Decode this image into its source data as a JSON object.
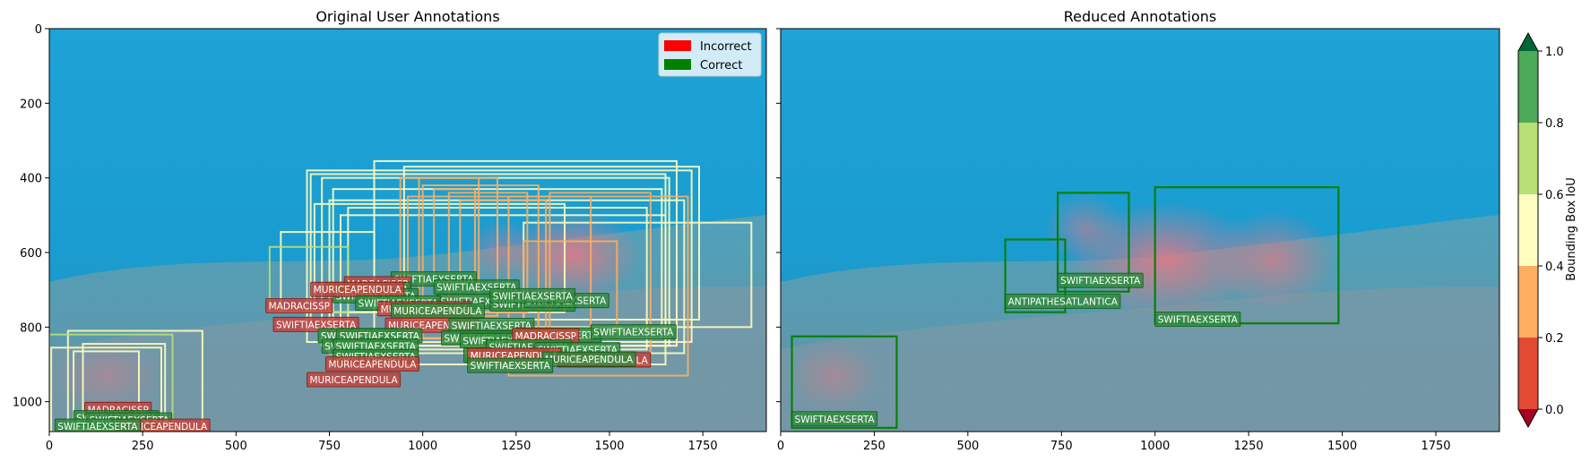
{
  "chart_data": [
    {
      "type": "annotated_image",
      "title": "Original User Annotations",
      "xlim": [
        0,
        1920
      ],
      "ylim": [
        1080,
        0
      ],
      "xticks": [
        0,
        250,
        500,
        750,
        1000,
        1250,
        1500,
        1750
      ],
      "yticks": [
        0,
        200,
        400,
        600,
        800,
        1000
      ],
      "legend": {
        "placement": "top-right",
        "entries": [
          {
            "label": "Incorrect",
            "color": "#ff0000"
          },
          {
            "label": "Correct",
            "color": "#008000"
          }
        ]
      },
      "boxes": [
        {
          "x0": 870,
          "y0": 355,
          "x1": 1680,
          "y1": 850,
          "iou": 0.5
        },
        {
          "x0": 690,
          "y0": 380,
          "x1": 1720,
          "y1": 840,
          "iou": 0.5
        },
        {
          "x0": 700,
          "y0": 390,
          "x1": 1650,
          "y1": 810,
          "iou": 0.5
        },
        {
          "x0": 730,
          "y0": 400,
          "x1": 1660,
          "y1": 850,
          "iou": 0.5
        },
        {
          "x0": 950,
          "y0": 370,
          "x1": 1740,
          "y1": 780,
          "iou": 0.5
        },
        {
          "x0": 750,
          "y0": 460,
          "x1": 1700,
          "y1": 870,
          "iou": 0.5
        },
        {
          "x0": 760,
          "y0": 430,
          "x1": 1640,
          "y1": 830,
          "iou": 0.5
        },
        {
          "x0": 780,
          "y0": 500,
          "x1": 1650,
          "y1": 900,
          "iou": 0.5
        },
        {
          "x0": 800,
          "y0": 480,
          "x1": 1600,
          "y1": 860,
          "iou": 0.5
        },
        {
          "x0": 710,
          "y0": 470,
          "x1": 1380,
          "y1": 760,
          "iou": 0.5
        },
        {
          "x0": 1270,
          "y0": 520,
          "x1": 1880,
          "y1": 800,
          "iou": 0.5
        },
        {
          "x0": 960,
          "y0": 450,
          "x1": 1450,
          "y1": 810,
          "iou": 0.4
        },
        {
          "x0": 1230,
          "y0": 450,
          "x1": 1710,
          "y1": 930,
          "iou": 0.3
        },
        {
          "x0": 1000,
          "y0": 420,
          "x1": 1310,
          "y1": 830,
          "iou": 0.3
        },
        {
          "x0": 940,
          "y0": 400,
          "x1": 1200,
          "y1": 770,
          "iou": 0.3
        },
        {
          "x0": 990,
          "y0": 400,
          "x1": 1150,
          "y1": 720,
          "iou": 0.3
        },
        {
          "x0": 1030,
          "y0": 430,
          "x1": 1140,
          "y1": 680,
          "iou": 0.3
        },
        {
          "x0": 1070,
          "y0": 440,
          "x1": 1280,
          "y1": 760,
          "iou": 0.3
        },
        {
          "x0": 1100,
          "y0": 460,
          "x1": 1330,
          "y1": 820,
          "iou": 0.3
        },
        {
          "x0": 1270,
          "y0": 570,
          "x1": 1520,
          "y1": 830,
          "iou": 0.3
        },
        {
          "x0": 1340,
          "y0": 440,
          "x1": 1610,
          "y1": 870,
          "iou": 0.3
        },
        {
          "x0": 620,
          "y0": 545,
          "x1": 870,
          "y1": 760,
          "iou": 0.6
        },
        {
          "x0": 590,
          "y0": 585,
          "x1": 800,
          "y1": 760,
          "iou": 0.7
        },
        {
          "x0": 50,
          "y0": 810,
          "x1": 410,
          "y1": 1075,
          "iou": 0.5
        },
        {
          "x0": 5,
          "y0": 855,
          "x1": 300,
          "y1": 1080,
          "iou": 0.5
        },
        {
          "x0": 90,
          "y0": 845,
          "x1": 310,
          "y1": 1075,
          "iou": 0.6
        },
        {
          "x0": 65,
          "y0": 865,
          "x1": 240,
          "y1": 1075,
          "iou": 0.6
        },
        {
          "x0": 0,
          "y0": 820,
          "x1": 330,
          "y1": 1080,
          "iou": 0.7
        }
      ],
      "labels": [
        {
          "text": "SWIFTIAEXSERTA",
          "x": 915,
          "y": 690,
          "correct": true
        },
        {
          "text": "SWIFTIAEXSERTA",
          "x": 1030,
          "y": 712,
          "correct": true
        },
        {
          "text": "MADRACISSP",
          "x": 790,
          "y": 703,
          "correct": false
        },
        {
          "text": "SWIFTIAEXSERTA",
          "x": 740,
          "y": 718,
          "correct": true
        },
        {
          "text": "SWIFTIAEXSERTA",
          "x": 760,
          "y": 735,
          "correct": true
        },
        {
          "text": "MURICEAPENDULA",
          "x": 700,
          "y": 718,
          "correct": false
        },
        {
          "text": "SWIFTIAEXSERTA",
          "x": 1040,
          "y": 750,
          "correct": true
        },
        {
          "text": "SWIFTIAEXSERTA",
          "x": 1180,
          "y": 757,
          "correct": true
        },
        {
          "text": "MADRACISSP",
          "x": 580,
          "y": 762,
          "correct": false
        },
        {
          "text": "SWIFTIAEXSERTA",
          "x": 820,
          "y": 755,
          "correct": true
        },
        {
          "text": "MURICEAPENDULA",
          "x": 880,
          "y": 770,
          "correct": false
        },
        {
          "text": "MURICEAPENDULA",
          "x": 915,
          "y": 775,
          "correct": true
        },
        {
          "text": "SWIFTIAEXSERTA",
          "x": 1270,
          "y": 748,
          "correct": true
        },
        {
          "text": "SWIFTIAEXSERTA",
          "x": 1180,
          "y": 735,
          "correct": true
        },
        {
          "text": "SWIFTIAEXSERTA",
          "x": 600,
          "y": 812,
          "correct": false
        },
        {
          "text": "MURICEAPENDULA",
          "x": 900,
          "y": 814,
          "correct": false
        },
        {
          "text": "SWIFTIAEXSERTA",
          "x": 1070,
          "y": 815,
          "correct": true
        },
        {
          "text": "SWIFTIAEXSERTA",
          "x": 720,
          "y": 842,
          "correct": true
        },
        {
          "text": "SWIFTIAEXSERTA",
          "x": 770,
          "y": 842,
          "correct": true
        },
        {
          "text": "SWIFTIAEXSERTA",
          "x": 1050,
          "y": 848,
          "correct": true
        },
        {
          "text": "SWIFTIAEXSERTA",
          "x": 1100,
          "y": 855,
          "correct": true
        },
        {
          "text": "SWIFTIAEXSERTA",
          "x": 1250,
          "y": 840,
          "correct": true
        },
        {
          "text": "SWIFTIAEXSERTA",
          "x": 1450,
          "y": 832,
          "correct": true
        },
        {
          "text": "MADRACISSP",
          "x": 1240,
          "y": 842,
          "correct": false
        },
        {
          "text": "SWIFTIAEXSERTA",
          "x": 730,
          "y": 870,
          "correct": true
        },
        {
          "text": "SWIFTIAEXSERTA",
          "x": 760,
          "y": 870,
          "correct": true
        },
        {
          "text": "SWIFTIAEXSERTA",
          "x": 1170,
          "y": 872,
          "correct": true
        },
        {
          "text": "SWIFTIAEXSERTA",
          "x": 1300,
          "y": 880,
          "correct": true
        },
        {
          "text": "SWIFTIAEXSERTA",
          "x": 1110,
          "y": 895,
          "correct": true
        },
        {
          "text": "MURICEAPENDULA",
          "x": 1120,
          "y": 895,
          "correct": false
        },
        {
          "text": "SWIFTIAEXSERTA",
          "x": 760,
          "y": 898,
          "correct": true
        },
        {
          "text": "MURICEAPENDULA",
          "x": 1360,
          "y": 907,
          "correct": false
        },
        {
          "text": "MURICEAPENDULA",
          "x": 1320,
          "y": 905,
          "correct": true
        },
        {
          "text": "MURICEAPENDULA",
          "x": 740,
          "y": 918,
          "correct": false
        },
        {
          "text": "SWIFTIAEXSERTA",
          "x": 1120,
          "y": 922,
          "correct": true
        },
        {
          "text": "MURICEAPENDULA",
          "x": 690,
          "y": 960,
          "correct": false
        },
        {
          "text": "MADRACISSP",
          "x": 95,
          "y": 1040,
          "correct": false
        },
        {
          "text": "SWIFTIAEXSERTA",
          "x": 65,
          "y": 1062,
          "correct": true
        },
        {
          "text": "SWIFTIAEXSERTA",
          "x": 100,
          "y": 1068,
          "correct": true
        },
        {
          "text": "MURICEAPENDULA",
          "x": 180,
          "y": 1085,
          "correct": false
        },
        {
          "text": "SWIFTIAEXSERTA",
          "x": 15,
          "y": 1085,
          "correct": true
        }
      ]
    },
    {
      "type": "annotated_image",
      "title": "Reduced Annotations",
      "xlim": [
        0,
        1920
      ],
      "ylim": [
        1080,
        0
      ],
      "xticks": [
        0,
        250,
        500,
        750,
        1000,
        1250,
        1500,
        1750
      ],
      "yticks": [
        0,
        200,
        400,
        600,
        800,
        1000
      ],
      "boxes": [
        {
          "x0": 740,
          "y0": 440,
          "x1": 930,
          "y1": 705,
          "iou": 1.0
        },
        {
          "x0": 600,
          "y0": 565,
          "x1": 760,
          "y1": 760,
          "iou": 1.0
        },
        {
          "x0": 1000,
          "y0": 425,
          "x1": 1490,
          "y1": 790,
          "iou": 1.0
        },
        {
          "x0": 30,
          "y0": 825,
          "x1": 310,
          "y1": 1070,
          "iou": 1.0
        }
      ],
      "labels": [
        {
          "text": "SWIFTIAEXSERTA",
          "x": 740,
          "y": 694,
          "correct": true
        },
        {
          "text": "ANTIPATHESATLANTICA",
          "x": 600,
          "y": 750,
          "correct": true
        },
        {
          "text": "SWIFTIAEXSERTA",
          "x": 1000,
          "y": 798,
          "correct": true
        },
        {
          "text": "SWIFTIAEXSERTA",
          "x": 30,
          "y": 1065,
          "correct": true
        }
      ]
    },
    {
      "type": "colorbar",
      "label": "Bounding Box IoU",
      "range": [
        0.0,
        1.0
      ],
      "ticks": [
        "0.0",
        "0.2",
        "0.4",
        "0.6",
        "0.8",
        "1.0"
      ],
      "bins": [
        {
          "from": 0.0,
          "to": 0.2,
          "color": "#e34a33"
        },
        {
          "from": 0.2,
          "to": 0.4,
          "color": "#fdae61"
        },
        {
          "from": 0.4,
          "to": 0.6,
          "color": "#fffdbf"
        },
        {
          "from": 0.6,
          "to": 0.8,
          "color": "#b7e075"
        },
        {
          "from": 0.8,
          "to": 1.0,
          "color": "#4daa58"
        }
      ],
      "under_color": "#a50026",
      "over_color": "#006837"
    }
  ]
}
